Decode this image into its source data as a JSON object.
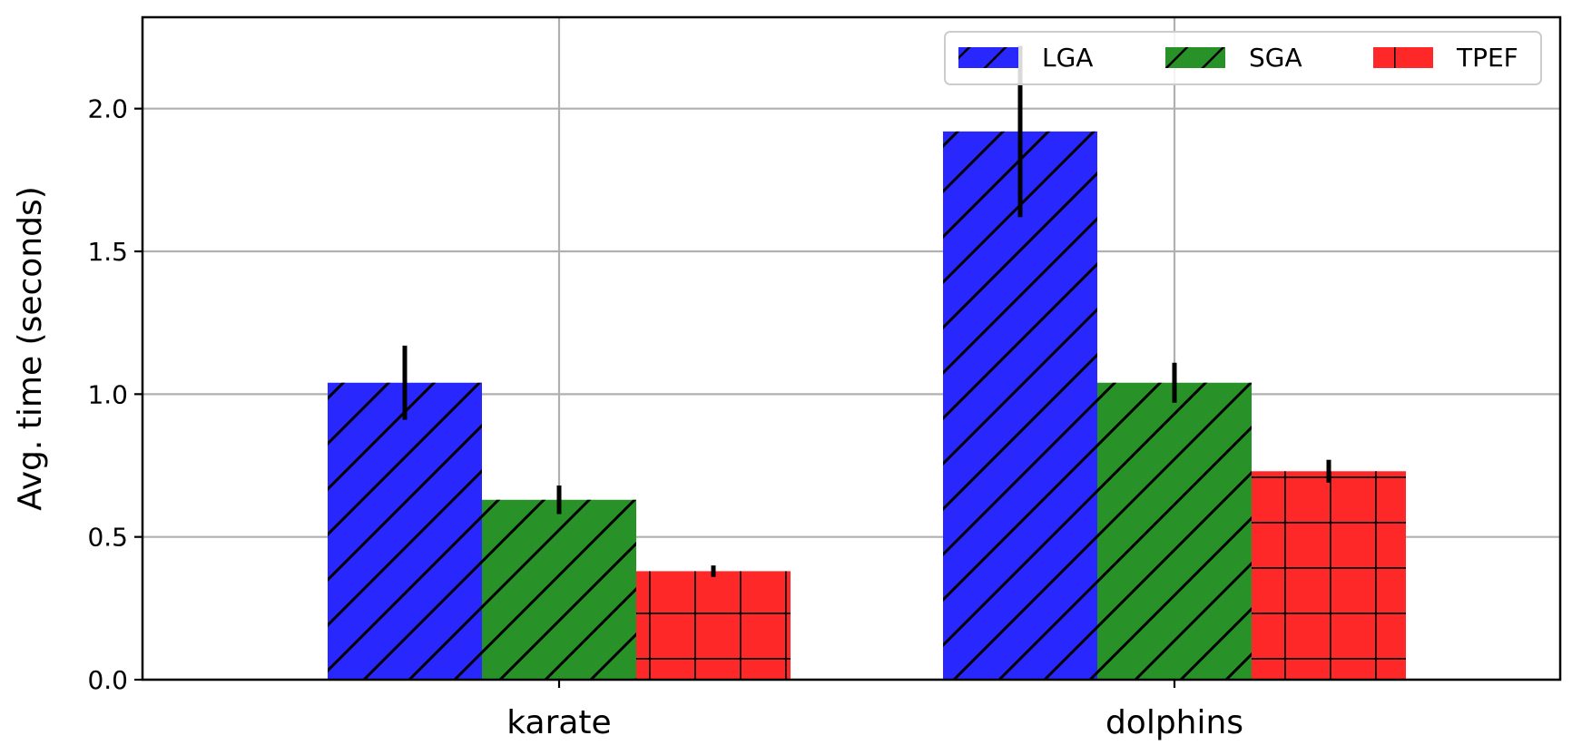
{
  "chart_data": {
    "type": "bar",
    "title": "",
    "xlabel": "",
    "ylabel": "Avg. time (seconds)",
    "categories": [
      "karate",
      "dolphins"
    ],
    "ylim": [
      0,
      2.32
    ],
    "yticks": [
      "0.0",
      "0.5",
      "1.0",
      "1.5",
      "2.0"
    ],
    "grid": true,
    "legend_position": "top-right",
    "series": [
      {
        "name": "LGA",
        "values": [
          1.04,
          1.92
        ],
        "errors": [
          0.13,
          0.3
        ],
        "color": "#2828fe",
        "hatch": "diagonal"
      },
      {
        "name": "SGA",
        "values": [
          0.63,
          1.04
        ],
        "errors": [
          0.05,
          0.07
        ],
        "color": "#289228",
        "hatch": "diagonal"
      },
      {
        "name": "TPEF",
        "values": [
          0.38,
          0.73
        ],
        "errors": [
          0.02,
          0.04
        ],
        "color": "#fe2828",
        "hatch": "grid"
      }
    ]
  }
}
